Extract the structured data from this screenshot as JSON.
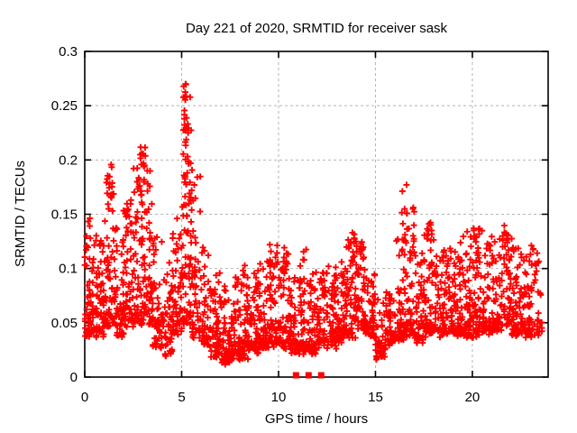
{
  "chart_data": {
    "type": "scatter",
    "title": "Day 221 of 2020, SRMTID for receiver sask",
    "xlabel": "GPS time / hours",
    "ylabel": "SRMTID / TECUs",
    "xlim": [
      0,
      23.91
    ],
    "ylim": [
      0,
      0.3
    ],
    "xticks": [
      0,
      5,
      10,
      15,
      20
    ],
    "xtick_labels": [
      "0",
      "5",
      "10",
      "15",
      "20"
    ],
    "yticks": [
      0,
      0.05,
      0.1,
      0.15,
      0.2,
      0.25,
      0.3
    ],
    "ytick_labels": [
      "0",
      "0.05",
      "0.1",
      "0.15",
      "0.2",
      "0.25",
      "0.3"
    ],
    "grid": {
      "on": true,
      "color": "#b4b4b4",
      "dash": "3,3",
      "ticks_mirrored": true
    },
    "legend": "none",
    "marker": {
      "type": "plus",
      "color": "#ff0000",
      "size": 7,
      "stroke_width": 1.9
    },
    "background": "#ffffff",
    "frame_color": "#000000",
    "text_color": "#000000",
    "peak_point": {
      "x": 5.2,
      "y": 0.27
    },
    "zero_value_markers_hours": [
      10.9,
      11.55,
      12.2
    ],
    "seed": 77,
    "bin_fields": [
      "hour_start",
      "hour_end",
      "count",
      "y_band_low",
      "y_max"
    ],
    "distribution_bins": [
      [
        0.0,
        0.5,
        60,
        0.04,
        0.15
      ],
      [
        0.5,
        1.0,
        58,
        0.04,
        0.13
      ],
      [
        1.0,
        1.5,
        56,
        0.05,
        0.19
      ],
      [
        1.5,
        2.0,
        56,
        0.04,
        0.14
      ],
      [
        2.0,
        2.5,
        55,
        0.05,
        0.16
      ],
      [
        2.5,
        3.0,
        58,
        0.05,
        0.215
      ],
      [
        3.0,
        3.5,
        58,
        0.05,
        0.205
      ],
      [
        3.5,
        4.0,
        50,
        0.03,
        0.13
      ],
      [
        4.0,
        4.5,
        48,
        0.02,
        0.11
      ],
      [
        4.5,
        5.0,
        52,
        0.04,
        0.15
      ],
      [
        5.0,
        5.5,
        55,
        0.05,
        0.26
      ],
      [
        5.5,
        6.0,
        50,
        0.04,
        0.19
      ],
      [
        6.0,
        6.5,
        50,
        0.03,
        0.12
      ],
      [
        6.5,
        7.0,
        52,
        0.02,
        0.1
      ],
      [
        7.0,
        7.5,
        52,
        0.015,
        0.085
      ],
      [
        7.5,
        8.0,
        52,
        0.02,
        0.1
      ],
      [
        8.0,
        8.5,
        52,
        0.02,
        0.1
      ],
      [
        8.5,
        9.0,
        52,
        0.025,
        0.1
      ],
      [
        9.0,
        9.5,
        52,
        0.03,
        0.11
      ],
      [
        9.5,
        10.0,
        52,
        0.03,
        0.12
      ],
      [
        10.0,
        10.5,
        52,
        0.03,
        0.125
      ],
      [
        10.5,
        11.0,
        50,
        0.025,
        0.1
      ],
      [
        11.0,
        11.5,
        50,
        0.025,
        0.115
      ],
      [
        11.5,
        12.0,
        50,
        0.025,
        0.1
      ],
      [
        12.0,
        12.5,
        50,
        0.03,
        0.1
      ],
      [
        12.5,
        13.0,
        50,
        0.03,
        0.105
      ],
      [
        13.0,
        13.5,
        52,
        0.035,
        0.115
      ],
      [
        13.5,
        14.0,
        55,
        0.04,
        0.135
      ],
      [
        14.0,
        14.5,
        52,
        0.045,
        0.13
      ],
      [
        14.5,
        15.0,
        46,
        0.04,
        0.1
      ],
      [
        15.0,
        15.5,
        36,
        0.02,
        0.07
      ],
      [
        15.5,
        16.0,
        42,
        0.03,
        0.08
      ],
      [
        16.0,
        16.5,
        50,
        0.035,
        0.13
      ],
      [
        16.5,
        17.0,
        50,
        0.04,
        0.165
      ],
      [
        17.0,
        17.5,
        48,
        0.035,
        0.12
      ],
      [
        17.5,
        18.0,
        50,
        0.04,
        0.145
      ],
      [
        18.0,
        18.5,
        50,
        0.04,
        0.115
      ],
      [
        18.5,
        19.0,
        50,
        0.04,
        0.12
      ],
      [
        19.0,
        19.5,
        52,
        0.04,
        0.125
      ],
      [
        19.5,
        20.0,
        52,
        0.04,
        0.135
      ],
      [
        20.0,
        20.5,
        52,
        0.04,
        0.14
      ],
      [
        20.5,
        21.0,
        52,
        0.04,
        0.13
      ],
      [
        21.0,
        21.5,
        52,
        0.045,
        0.13
      ],
      [
        21.5,
        22.0,
        52,
        0.05,
        0.14
      ],
      [
        22.0,
        22.5,
        52,
        0.04,
        0.13
      ],
      [
        22.5,
        23.0,
        52,
        0.04,
        0.13
      ],
      [
        23.0,
        23.6,
        40,
        0.04,
        0.12
      ]
    ],
    "cluster_fields": [
      "hour_center",
      "hour_halfwidth",
      "count",
      "y_low",
      "y_high"
    ],
    "clusters": [
      [
        5.2,
        0.12,
        34,
        0.13,
        0.27
      ],
      [
        5.45,
        0.1,
        10,
        0.1,
        0.2
      ],
      [
        3.0,
        0.22,
        22,
        0.12,
        0.22
      ],
      [
        1.35,
        0.08,
        8,
        0.165,
        0.2
      ],
      [
        2.15,
        0.1,
        6,
        0.13,
        0.16
      ],
      [
        16.5,
        0.15,
        12,
        0.1,
        0.18
      ],
      [
        17.75,
        0.12,
        8,
        0.1,
        0.15
      ],
      [
        13.95,
        0.2,
        8,
        0.09,
        0.135
      ],
      [
        20.35,
        0.2,
        8,
        0.1,
        0.142
      ],
      [
        21.8,
        0.15,
        6,
        0.1,
        0.14
      ],
      [
        9.95,
        0.3,
        6,
        0.09,
        0.125
      ],
      [
        0.15,
        0.1,
        5,
        0.115,
        0.15
      ]
    ]
  }
}
